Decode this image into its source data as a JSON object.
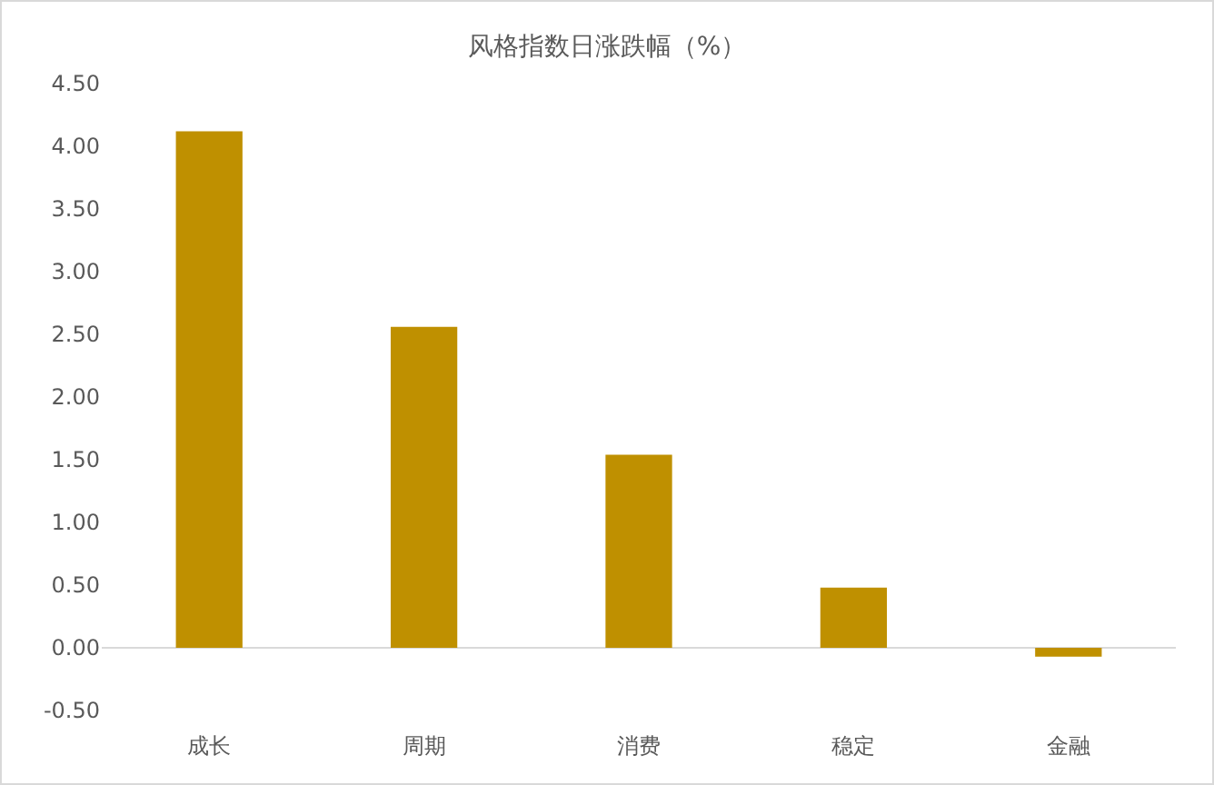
{
  "chart_data": {
    "type": "bar",
    "title": "风格指数日涨跌幅（%）",
    "categories": [
      "成长",
      "周期",
      "消费",
      "稳定",
      "金融"
    ],
    "values": [
      4.12,
      2.56,
      1.54,
      0.48,
      -0.07
    ],
    "color": "#bf9000",
    "ylim": [
      -0.5,
      4.5
    ],
    "yticks": [
      {
        "value": -0.5,
        "label": "-0.50"
      },
      {
        "value": 0,
        "label": "0.00"
      },
      {
        "value": 0.5,
        "label": "0.50"
      },
      {
        "value": 1,
        "label": "1.00"
      },
      {
        "value": 1.5,
        "label": "1.50"
      },
      {
        "value": 2,
        "label": "2.00"
      },
      {
        "value": 2.5,
        "label": "2.50"
      },
      {
        "value": 3,
        "label": "3.00"
      },
      {
        "value": 3.5,
        "label": "3.50"
      },
      {
        "value": 4,
        "label": "4.00"
      },
      {
        "value": 4.5,
        "label": "4.50"
      }
    ]
  }
}
